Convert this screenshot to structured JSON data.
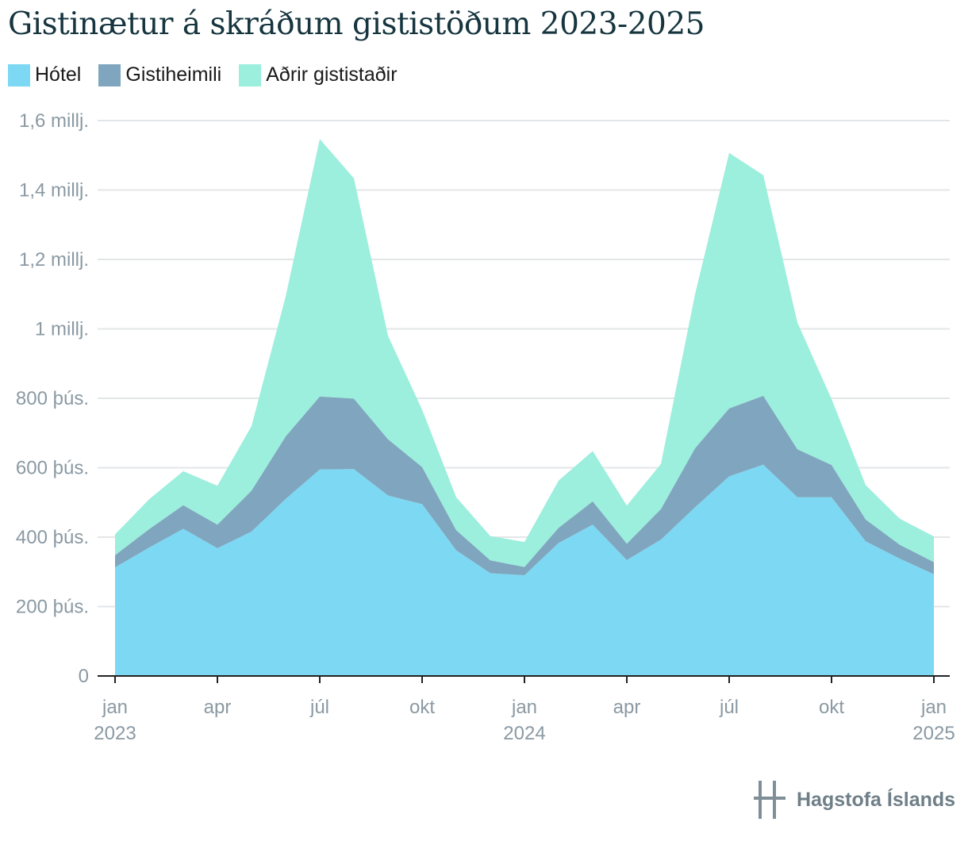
{
  "chart_data": {
    "type": "area",
    "stacked": true,
    "title": "Gistinætur á skráðum gististöðum 2023-2025",
    "categories": [
      "jan 2023",
      "feb 2023",
      "mar 2023",
      "apr 2023",
      "maí 2023",
      "jún 2023",
      "júl 2023",
      "ágú 2023",
      "sep 2023",
      "okt 2023",
      "nóv 2023",
      "des 2023",
      "jan 2024",
      "feb 2024",
      "mar 2024",
      "apr 2024",
      "maí 2024",
      "jún 2024",
      "júl 2024",
      "ágú 2024",
      "sep 2024",
      "okt 2024",
      "nóv 2024",
      "des 2024",
      "jan 2025"
    ],
    "series": [
      {
        "name": "Hótel",
        "color": "#7dd8f3",
        "values": [
          313,
          370,
          424,
          368,
          416,
          510,
          595,
          596,
          520,
          495,
          362,
          296,
          290,
          383,
          436,
          334,
          393,
          486,
          575,
          609,
          515,
          515,
          388,
          338,
          293
        ]
      },
      {
        "name": "Gistiheimili",
        "color": "#7fa6be",
        "values": [
          35,
          53,
          68,
          68,
          118,
          180,
          210,
          203,
          162,
          107,
          58,
          37,
          24,
          44,
          67,
          47,
          88,
          170,
          196,
          198,
          138,
          93,
          63,
          40,
          35
        ]
      },
      {
        "name": "Aðrir gististaðir",
        "color": "#9ceedd",
        "values": [
          60,
          86,
          98,
          112,
          186,
          403,
          742,
          635,
          298,
          165,
          95,
          70,
          72,
          136,
          145,
          110,
          130,
          444,
          736,
          636,
          365,
          190,
          99,
          75,
          74
        ]
      }
    ],
    "ylim": [
      0,
      1600
    ],
    "y_ticks": [
      0,
      200,
      400,
      600,
      800,
      1000,
      1200,
      1400,
      1600
    ],
    "y_tick_labels": [
      "0",
      "200 þús.",
      "400 þús.",
      "600 þús.",
      "800 þús.",
      "1 millj.",
      "1,2 millj.",
      "1,4 millj.",
      "1,6 millj."
    ],
    "x_ticks": [
      {
        "index": 0,
        "label": "jan",
        "year": "2023"
      },
      {
        "index": 3,
        "label": "apr",
        "year": ""
      },
      {
        "index": 6,
        "label": "júl",
        "year": ""
      },
      {
        "index": 9,
        "label": "okt",
        "year": ""
      },
      {
        "index": 12,
        "label": "jan",
        "year": "2024"
      },
      {
        "index": 15,
        "label": "apr",
        "year": ""
      },
      {
        "index": 18,
        "label": "júl",
        "year": ""
      },
      {
        "index": 21,
        "label": "okt",
        "year": ""
      },
      {
        "index": 24,
        "label": "jan",
        "year": "2025"
      }
    ],
    "grid": true,
    "legend_position": "top-left"
  },
  "legend": {
    "items": [
      {
        "label": "Hótel",
        "color": "#7dd8f3"
      },
      {
        "label": "Gistiheimili",
        "color": "#7fa6be"
      },
      {
        "label": "Aðrir gististaðir",
        "color": "#9ceedd"
      }
    ]
  },
  "footer": {
    "logo_text": "Hagstofa Íslands",
    "logo_icon": "hagstofa-logo-icon"
  }
}
